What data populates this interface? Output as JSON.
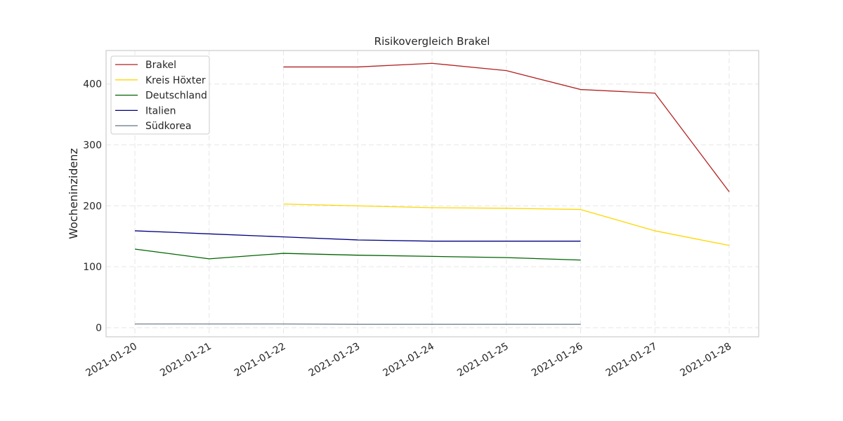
{
  "chart_data": {
    "type": "line",
    "title": "Risikovergleich Brakel",
    "xlabel": "",
    "ylabel": "Wocheninzidenz",
    "x": [
      "2021-01-20",
      "2021-01-21",
      "2021-01-22",
      "2021-01-23",
      "2021-01-24",
      "2021-01-25",
      "2021-01-26",
      "2021-01-27",
      "2021-01-28"
    ],
    "ylim": [
      -15,
      455
    ],
    "yticks": [
      0,
      100,
      200,
      300,
      400
    ],
    "grid": true,
    "legend": "top-left",
    "series": [
      {
        "name": "Brakel",
        "color": "#b22222",
        "values": [
          null,
          null,
          428,
          428,
          434,
          422,
          391,
          385,
          223
        ]
      },
      {
        "name": "Kreis Höxter",
        "color": "#ffd700",
        "values": [
          null,
          null,
          203,
          200,
          197,
          196,
          194,
          159,
          135
        ]
      },
      {
        "name": "Deutschland",
        "color": "#006400",
        "values": [
          129,
          113,
          122,
          119,
          117,
          115,
          111,
          null,
          null
        ]
      },
      {
        "name": "Italien",
        "color": "#000080",
        "values": [
          159,
          154,
          149,
          144,
          142,
          142,
          142,
          null,
          null
        ]
      },
      {
        "name": "Südkorea",
        "color": "#708090",
        "values": [
          6,
          6,
          6,
          5.5,
          5.5,
          5.5,
          5.5,
          null,
          null
        ]
      }
    ]
  }
}
